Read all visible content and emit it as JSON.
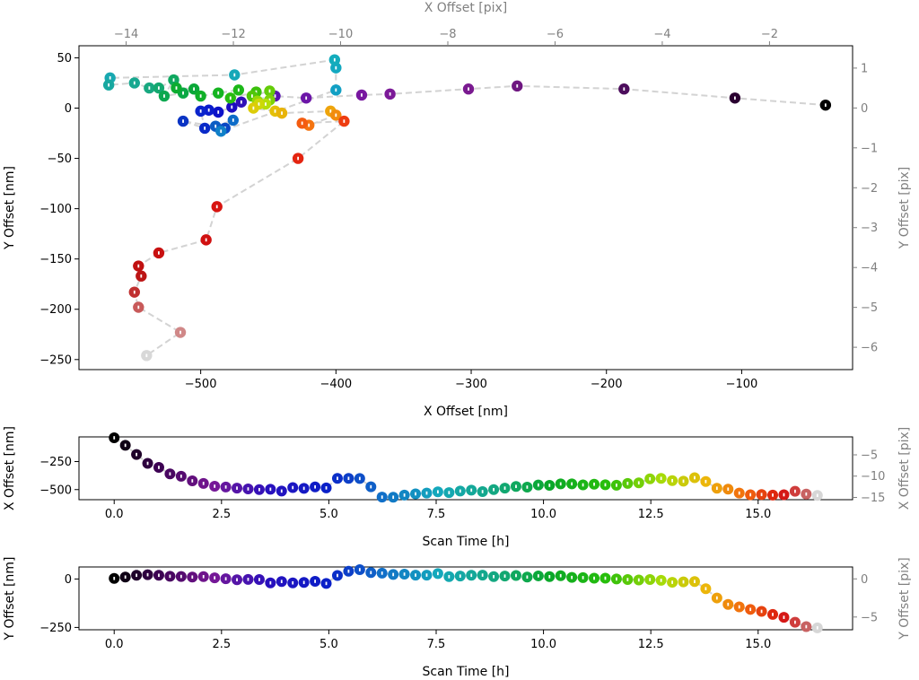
{
  "chart_data": [
    {
      "type": "scatter",
      "name": "xy-trajectory",
      "xlabel": "X Offset [nm]",
      "ylabel": "Y Offset [nm]",
      "top_xlabel": "X Offset [pix]",
      "right_ylabel": "Y Offset [pix]",
      "xlim": [
        -590,
        -18
      ],
      "ylim": [
        -260,
        62
      ],
      "top_xlim": [
        -14.88,
        -0.45
      ],
      "right_ylim": [
        -6.56,
        1.56
      ],
      "xticks": [
        -500,
        -400,
        -300,
        -200,
        -100
      ],
      "xtick_labels": [
        "−500",
        "−400",
        "−300",
        "−200",
        "−100"
      ],
      "yticks": [
        50,
        0,
        -50,
        -100,
        -150,
        -200,
        -250
      ],
      "ytick_labels": [
        "50",
        "0",
        "−50",
        "−100",
        "−150",
        "−200",
        "−250"
      ],
      "top_xticks": [
        -14,
        -12,
        -10,
        -8,
        -6,
        -4,
        -2
      ],
      "top_xtick_labels": [
        "−14",
        "−12",
        "−10",
        "−8",
        "−6",
        "−4",
        "−2"
      ],
      "right_yticks": [
        1,
        0,
        -1,
        -2,
        -3,
        -4,
        -5,
        -6
      ],
      "right_ytick_labels": [
        "1",
        "0",
        "−1",
        "−2",
        "−3",
        "−4",
        "−5",
        "−6"
      ],
      "grid": false,
      "points": [
        {
          "x": -38,
          "y": 3,
          "color": "#000000"
        },
        {
          "x": -105,
          "y": 10,
          "color": "#2a0030"
        },
        {
          "x": -187,
          "y": 19,
          "color": "#4c0d5c"
        },
        {
          "x": -266,
          "y": 22,
          "color": "#6e1680"
        },
        {
          "x": -302,
          "y": 19,
          "color": "#7a1a90"
        },
        {
          "x": -360,
          "y": 14,
          "color": "#7c1a98"
        },
        {
          "x": -381,
          "y": 13,
          "color": "#7818a0"
        },
        {
          "x": -422,
          "y": 10,
          "color": "#6c16a8"
        },
        {
          "x": -445,
          "y": 12,
          "color": "#5814b0"
        },
        {
          "x": -470,
          "y": 6,
          "color": "#3010b8"
        },
        {
          "x": -477,
          "y": 1,
          "color": "#1c0cc0"
        },
        {
          "x": -487,
          "y": -4,
          "color": "#0c12c8"
        },
        {
          "x": -494,
          "y": -2,
          "color": "#0a1ccc"
        },
        {
          "x": -500,
          "y": -3,
          "color": "#0a24cc"
        },
        {
          "x": -497,
          "y": -20,
          "color": "#0a2ac8"
        },
        {
          "x": -513,
          "y": -13,
          "color": "#0a34c4"
        },
        {
          "x": -482,
          "y": -20,
          "color": "#0a48c4"
        },
        {
          "x": -489,
          "y": -18,
          "color": "#0c5cc4"
        },
        {
          "x": -476,
          "y": -12,
          "color": "#0e6cc8"
        },
        {
          "x": -485,
          "y": -23,
          "color": "#1080c8"
        },
        {
          "x": -400,
          "y": 18,
          "color": "#12a0c4"
        },
        {
          "x": -400,
          "y": 40,
          "color": "#12a8c0"
        },
        {
          "x": -401,
          "y": 48,
          "color": "#14acbc"
        },
        {
          "x": -475,
          "y": 33,
          "color": "#16a8b8"
        },
        {
          "x": -567,
          "y": 30,
          "color": "#18a8b0"
        },
        {
          "x": -568,
          "y": 23,
          "color": "#18a8a0"
        },
        {
          "x": -549,
          "y": 25,
          "color": "#18a890"
        },
        {
          "x": -538,
          "y": 20,
          "color": "#18a880"
        },
        {
          "x": -531,
          "y": 20,
          "color": "#14a870"
        },
        {
          "x": -520,
          "y": 28,
          "color": "#10a860"
        },
        {
          "x": -527,
          "y": 12,
          "color": "#0ca850"
        },
        {
          "x": -513,
          "y": 15,
          "color": "#0aa844"
        },
        {
          "x": -505,
          "y": 19,
          "color": "#0aa838"
        },
        {
          "x": -518,
          "y": 20,
          "color": "#0cac30"
        },
        {
          "x": -500,
          "y": 12,
          "color": "#10b028"
        },
        {
          "x": -487,
          "y": 15,
          "color": "#14b420"
        },
        {
          "x": -472,
          "y": 18,
          "color": "#1cb818"
        },
        {
          "x": -478,
          "y": 10,
          "color": "#28bc10"
        },
        {
          "x": -459,
          "y": 16,
          "color": "#3cc00c"
        },
        {
          "x": -462,
          "y": 12,
          "color": "#50c60a"
        },
        {
          "x": -449,
          "y": 17,
          "color": "#64cc08"
        },
        {
          "x": -449,
          "y": 8,
          "color": "#7cd208"
        },
        {
          "x": -458,
          "y": 7,
          "color": "#98d808"
        },
        {
          "x": -452,
          "y": 4,
          "color": "#b4de08"
        },
        {
          "x": -457,
          "y": 4,
          "color": "#ccd808"
        },
        {
          "x": -461,
          "y": 0,
          "color": "#dccc08"
        },
        {
          "x": -445,
          "y": -3,
          "color": "#e4c008"
        },
        {
          "x": -440,
          "y": -5,
          "color": "#e8b40a"
        },
        {
          "x": -404,
          "y": -3,
          "color": "#eea40c"
        },
        {
          "x": -400,
          "y": -7,
          "color": "#f28c0e"
        },
        {
          "x": -420,
          "y": -17,
          "color": "#f47410"
        },
        {
          "x": -425,
          "y": -15,
          "color": "#f45c10"
        },
        {
          "x": -394,
          "y": -13,
          "color": "#ee3c10"
        },
        {
          "x": -428,
          "y": -50,
          "color": "#e42410"
        },
        {
          "x": -488,
          "y": -98,
          "color": "#d81410"
        },
        {
          "x": -496,
          "y": -131,
          "color": "#d01010"
        },
        {
          "x": -531,
          "y": -144,
          "color": "#c81010"
        },
        {
          "x": -546,
          "y": -157,
          "color": "#c01010"
        },
        {
          "x": -544,
          "y": -167,
          "color": "#bc1414"
        },
        {
          "x": -549,
          "y": -183,
          "color": "#c03030"
        },
        {
          "x": -546,
          "y": -198,
          "color": "#c85a5a"
        },
        {
          "x": -515,
          "y": -223,
          "color": "#d08888"
        },
        {
          "x": -540,
          "y": -246,
          "color": "#d8d8d8"
        }
      ]
    },
    {
      "type": "scatter",
      "name": "x-vs-time",
      "xlabel": "Scan Time [h]",
      "ylabel": "X Offset [nm]",
      "right_ylabel": "X Offset [pix]",
      "xlim": [
        -0.82,
        17.2
      ],
      "ylim": [
        -590,
        -30
      ],
      "right_ylim": [
        -15.53,
        -0.79
      ],
      "xticks": [
        0,
        2.5,
        5,
        7.5,
        10,
        12.5,
        15
      ],
      "xtick_labels": [
        "0.0",
        "2.5",
        "5.0",
        "7.5",
        "10.0",
        "12.5",
        "15.0"
      ],
      "yticks": [
        -250,
        -500
      ],
      "ytick_labels": [
        "−250",
        "−500"
      ],
      "right_yticks": [
        -5,
        -10,
        -15
      ],
      "right_ytick_labels": [
        "−5",
        "−10",
        "−15"
      ],
      "grid": false,
      "t": [
        0.0,
        0.26,
        0.52,
        0.78,
        1.04,
        1.3,
        1.56,
        1.82,
        2.08,
        2.34,
        2.6,
        2.86,
        3.12,
        3.38,
        3.64,
        3.9,
        4.16,
        4.42,
        4.68,
        4.94,
        5.2,
        5.46,
        5.72,
        5.98,
        6.24,
        6.5,
        6.76,
        7.02,
        7.28,
        7.54,
        7.8,
        8.06,
        8.32,
        8.58,
        8.84,
        9.1,
        9.36,
        9.62,
        9.88,
        10.14,
        10.4,
        10.66,
        10.92,
        11.18,
        11.44,
        11.7,
        11.96,
        12.22,
        12.48,
        12.74,
        13.0,
        13.26,
        13.52,
        13.78,
        14.04,
        14.3,
        14.56,
        14.82,
        15.08,
        15.34,
        15.6,
        15.86,
        16.12,
        16.38
      ],
      "values": [
        -38,
        -105,
        -187,
        -266,
        -302,
        -360,
        -381,
        -422,
        -445,
        -470,
        -477,
        -487,
        -494,
        -500,
        -497,
        -513,
        -482,
        -489,
        -476,
        -485,
        -400,
        -400,
        -401,
        -475,
        -567,
        -568,
        -549,
        -538,
        -531,
        -520,
        -527,
        -513,
        -505,
        -518,
        -500,
        -487,
        -472,
        -478,
        -459,
        -462,
        -449,
        -449,
        -458,
        -452,
        -457,
        -461,
        -445,
        -440,
        -404,
        -400,
        -420,
        -425,
        -394,
        -428,
        -488,
        -496,
        -531,
        -546,
        -544,
        -549,
        -546,
        -515,
        -540,
        -552
      ]
    },
    {
      "type": "scatter",
      "name": "y-vs-time",
      "xlabel": "Scan Time [h]",
      "ylabel": "Y Offset [nm]",
      "right_ylabel": "Y Offset [pix]",
      "xlim": [
        -0.82,
        17.2
      ],
      "ylim": [
        -262,
        62
      ],
      "right_ylim": [
        -6.67,
        1.56
      ],
      "xticks": [
        0,
        2.5,
        5,
        7.5,
        10,
        12.5,
        15
      ],
      "xtick_labels": [
        "0.0",
        "2.5",
        "5.0",
        "7.5",
        "10.0",
        "12.5",
        "15.0"
      ],
      "yticks": [
        0,
        -250
      ],
      "ytick_labels": [
        "0",
        "−250"
      ],
      "right_yticks": [
        0,
        -5
      ],
      "right_ytick_labels": [
        "0",
        "−5"
      ],
      "grid": false,
      "t": [
        0.0,
        0.26,
        0.52,
        0.78,
        1.04,
        1.3,
        1.56,
        1.82,
        2.08,
        2.34,
        2.6,
        2.86,
        3.12,
        3.38,
        3.64,
        3.9,
        4.16,
        4.42,
        4.68,
        4.94,
        5.2,
        5.46,
        5.72,
        5.98,
        6.24,
        6.5,
        6.76,
        7.02,
        7.28,
        7.54,
        7.8,
        8.06,
        8.32,
        8.58,
        8.84,
        9.1,
        9.36,
        9.62,
        9.88,
        10.14,
        10.4,
        10.66,
        10.92,
        11.18,
        11.44,
        11.7,
        11.96,
        12.22,
        12.48,
        12.74,
        13.0,
        13.26,
        13.52,
        13.78,
        14.04,
        14.3,
        14.56,
        14.82,
        15.08,
        15.34,
        15.6,
        15.86,
        16.12,
        16.38
      ],
      "values": [
        3,
        10,
        19,
        22,
        19,
        14,
        13,
        10,
        12,
        6,
        1,
        -4,
        -2,
        -3,
        -20,
        -13,
        -20,
        -18,
        -12,
        -23,
        18,
        40,
        48,
        33,
        30,
        23,
        25,
        20,
        20,
        28,
        12,
        15,
        19,
        20,
        12,
        15,
        18,
        10,
        16,
        12,
        17,
        8,
        7,
        4,
        4,
        0,
        -3,
        -5,
        -3,
        -7,
        -17,
        -15,
        -13,
        -50,
        -98,
        -131,
        -144,
        -157,
        -167,
        -183,
        -198,
        -223,
        -246,
        -252
      ]
    }
  ]
}
